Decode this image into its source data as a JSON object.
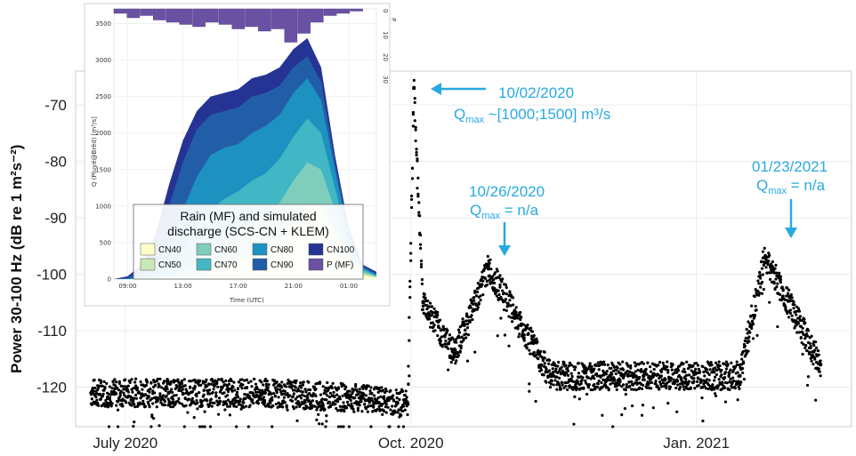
{
  "chart_data": [
    {
      "type": "scatter",
      "ylabel": "Power 30-100 Hz (dB re 1 m²s⁻²)",
      "ylim": [
        -127,
        -64
      ],
      "yticks": [
        -70,
        -80,
        -90,
        -100,
        -110,
        -120
      ],
      "xticks": [
        {
          "label": "July 2020",
          "date": "2020-07-01"
        },
        {
          "label": "Oct. 2020",
          "date": "2020-10-01"
        },
        {
          "label": "Jan. 2021",
          "date": "2021-01-01"
        }
      ],
      "xlim": [
        "2020-06-15",
        "2021-02-20"
      ],
      "grid": true,
      "series": [
        {
          "points_summary": [
            {
              "date": "2020-06-20",
              "y": -121
            },
            {
              "date": "2020-07-15",
              "y": -121
            },
            {
              "date": "2020-08-15",
              "y": -121
            },
            {
              "date": "2020-09-15",
              "y": -122
            },
            {
              "date": "2020-09-30",
              "y": -123
            },
            {
              "date": "2020-10-02",
              "y": -67
            },
            {
              "date": "2020-10-05",
              "y": -105
            },
            {
              "date": "2020-10-15",
              "y": -114
            },
            {
              "date": "2020-10-26",
              "y": -99
            },
            {
              "date": "2020-11-15",
              "y": -118
            },
            {
              "date": "2020-12-15",
              "y": -118
            },
            {
              "date": "2021-01-15",
              "y": -118
            },
            {
              "date": "2021-01-23",
              "y": -97
            },
            {
              "date": "2021-02-10",
              "y": -116
            }
          ]
        }
      ],
      "annotations": [
        {
          "date_text": "10/02/2020",
          "q_sub": "max",
          "q_text": " ~[1000;1500] m³/s"
        },
        {
          "date_text": "10/26/2020",
          "q_sub": "max",
          "q_text": " = n/a"
        },
        {
          "date_text": "01/23/2021",
          "q_sub": "max",
          "q_text": " = n/a"
        }
      ]
    },
    {
      "type": "area",
      "xlabel": "Time (UTC)",
      "ylabel": "Q (Pluyé@Brêd) [m³/s]",
      "y2label": "P",
      "xticks": [
        "09:00",
        "13:00",
        "17:00",
        "21:00",
        "01:00"
      ],
      "yticks": [
        0,
        500,
        1000,
        1500,
        2000,
        2500,
        3000,
        3500
      ],
      "y2ticks": [
        0,
        10,
        20,
        30
      ],
      "ylim": [
        0,
        3700
      ],
      "legend": {
        "title_line1": "Rain (MF) and simulated",
        "title_line2": "discharge (SCS-CN + KLEM)",
        "placement": "bottom",
        "entries": [
          {
            "name": "CN40",
            "color": "#ffffcc"
          },
          {
            "name": "CN50",
            "color": "#c7e9b4"
          },
          {
            "name": "CN60",
            "color": "#7fcdbb"
          },
          {
            "name": "CN70",
            "color": "#41b6c4"
          },
          {
            "name": "CN80",
            "color": "#1d91c0"
          },
          {
            "name": "CN90",
            "color": "#225ea8"
          },
          {
            "name": "CN100",
            "color": "#253494"
          },
          {
            "name": "P (MF)",
            "color": "#6a51a3"
          }
        ]
      },
      "x_hours": [
        8,
        9,
        10,
        11,
        12,
        13,
        14,
        15,
        16,
        17,
        18,
        19,
        20,
        21,
        22,
        23,
        24,
        25,
        26,
        27
      ],
      "series": [
        {
          "name": "CN100",
          "values": [
            0,
            40,
            200,
            600,
            1300,
            1900,
            2300,
            2500,
            2550,
            2600,
            2750,
            2800,
            2900,
            3150,
            3300,
            2900,
            1700,
            700,
            200,
            100
          ]
        },
        {
          "name": "CN90",
          "values": [
            0,
            20,
            120,
            400,
            1000,
            1600,
            2050,
            2250,
            2300,
            2350,
            2500,
            2550,
            2650,
            2900,
            3050,
            2700,
            1600,
            650,
            180,
            80
          ]
        },
        {
          "name": "CN80",
          "values": [
            0,
            5,
            40,
            170,
            500,
            950,
            1400,
            1700,
            1800,
            1850,
            2000,
            2100,
            2250,
            2550,
            2750,
            2450,
            1500,
            600,
            160,
            60
          ]
        },
        {
          "name": "CN70",
          "values": [
            0,
            0,
            10,
            50,
            170,
            400,
            700,
            950,
            1100,
            1200,
            1350,
            1450,
            1650,
            1950,
            2200,
            2000,
            1250,
            500,
            140,
            50
          ]
        },
        {
          "name": "CN60",
          "values": [
            0,
            0,
            0,
            10,
            40,
            120,
            250,
            400,
            550,
            650,
            780,
            880,
            1050,
            1350,
            1600,
            1500,
            950,
            400,
            110,
            40
          ]
        },
        {
          "name": "CN50",
          "values": [
            0,
            0,
            0,
            0,
            5,
            20,
            60,
            120,
            200,
            260,
            340,
            420,
            540,
            780,
            1000,
            1000,
            650,
            280,
            80,
            30
          ]
        },
        {
          "name": "CN40",
          "values": [
            0,
            0,
            0,
            0,
            0,
            0,
            5,
            20,
            40,
            60,
            90,
            130,
            200,
            350,
            500,
            560,
            380,
            170,
            50,
            20
          ]
        }
      ],
      "rain": [
        2,
        4,
        3,
        5,
        6,
        7,
        8,
        6,
        7,
        9,
        8,
        10,
        9,
        15,
        11,
        6,
        3,
        2,
        1,
        0
      ]
    }
  ]
}
